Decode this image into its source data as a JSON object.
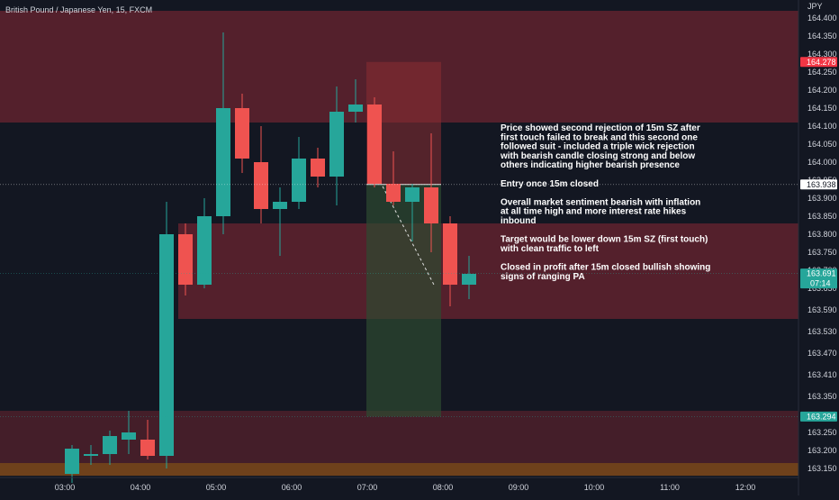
{
  "header": {
    "symbol_title": "British Pound / Japanese Yen, 15, FXCM"
  },
  "price_axis": {
    "currency": "JPY",
    "ticks": [
      "164.400",
      "164.350",
      "164.300",
      "164.250",
      "164.200",
      "164.150",
      "164.100",
      "164.050",
      "164.000",
      "163.950",
      "163.900",
      "163.850",
      "163.800",
      "163.750",
      "163.700",
      "163.650",
      "163.590",
      "163.530",
      "163.470",
      "163.410",
      "163.350",
      "163.290",
      "163.250",
      "163.200",
      "163.150"
    ],
    "labels": [
      {
        "text": "164.278",
        "color": "#f23645"
      },
      {
        "text": "163.938",
        "color": "#ffffff"
      },
      {
        "text": "163.691",
        "color": "#26a69a",
        "sub": "07:14"
      },
      {
        "text": "163.294",
        "color": "#26a69a"
      }
    ]
  },
  "time_axis": {
    "ticks": [
      "03:00",
      "04:00",
      "05:00",
      "06:00",
      "07:00",
      "08:00",
      "09:00",
      "10:00",
      "11:00",
      "12:00"
    ]
  },
  "annotation": {
    "lines": [
      "Price showed second rejection of 15m SZ after",
      "first touch failed to break and this second one",
      "followed suit - included a triple wick rejection",
      "with bearish candle closing strong and below",
      "others indicating higher bearish presence",
      "",
      "Entry once 15m closed",
      "",
      "Overall market sentiment bearish with inflation",
      "at all time high and more interest rate hikes",
      "inbound",
      "",
      "Target would be lower down 15m SZ (first touch)",
      "with clean traffic to left",
      "",
      "Closed in profit after 15m closed bullish showing",
      "signs of ranging PA"
    ]
  },
  "colors": {
    "background": "#131722",
    "bull": "#26a69a",
    "bear": "#ef5350",
    "zone": "#6e2430",
    "risk_box": "#8b2d33",
    "reward_box": "#2e4a30",
    "demand_zone": "#7a4a18"
  },
  "chart_data": {
    "type": "candlestick",
    "symbol": "British Pound / Japanese Yen",
    "timeframe": "15",
    "source": "FXCM",
    "y_unit": "JPY",
    "ylim": [
      163.13,
      164.42
    ],
    "candles": [
      {
        "o": 163.135,
        "h": 163.215,
        "l": 163.11,
        "c": 163.205
      },
      {
        "o": 163.185,
        "h": 163.215,
        "l": 163.16,
        "c": 163.19
      },
      {
        "o": 163.19,
        "h": 163.255,
        "l": 163.16,
        "c": 163.24
      },
      {
        "o": 163.23,
        "h": 163.31,
        "l": 163.19,
        "c": 163.25
      },
      {
        "o": 163.23,
        "h": 163.285,
        "l": 163.175,
        "c": 163.185
      },
      {
        "o": 163.185,
        "h": 163.89,
        "l": 163.15,
        "c": 163.8
      },
      {
        "o": 163.8,
        "h": 163.83,
        "l": 163.63,
        "c": 163.66
      },
      {
        "o": 163.66,
        "h": 163.9,
        "l": 163.65,
        "c": 163.85
      },
      {
        "o": 163.85,
        "h": 164.36,
        "l": 163.8,
        "c": 164.15
      },
      {
        "o": 164.15,
        "h": 164.19,
        "l": 163.97,
        "c": 164.01
      },
      {
        "o": 164.0,
        "h": 164.1,
        "l": 163.83,
        "c": 163.87
      },
      {
        "o": 163.87,
        "h": 163.93,
        "l": 163.74,
        "c": 163.89
      },
      {
        "o": 163.89,
        "h": 164.07,
        "l": 163.87,
        "c": 164.01
      },
      {
        "o": 164.01,
        "h": 164.04,
        "l": 163.93,
        "c": 163.96
      },
      {
        "o": 163.96,
        "h": 164.21,
        "l": 163.88,
        "c": 164.14
      },
      {
        "o": 164.14,
        "h": 164.23,
        "l": 164.11,
        "c": 164.16
      },
      {
        "o": 164.16,
        "h": 164.18,
        "l": 163.93,
        "c": 163.94
      },
      {
        "o": 163.94,
        "h": 164.03,
        "l": 163.88,
        "c": 163.89
      },
      {
        "o": 163.89,
        "h": 163.94,
        "l": 163.78,
        "c": 163.93
      },
      {
        "o": 163.93,
        "h": 164.08,
        "l": 163.75,
        "c": 163.83
      },
      {
        "o": 163.83,
        "h": 163.85,
        "l": 163.6,
        "c": 163.66
      },
      {
        "o": 163.66,
        "h": 163.74,
        "l": 163.62,
        "c": 163.69
      }
    ],
    "zones": [
      {
        "kind": "supply",
        "from": 164.11,
        "to": 164.42
      },
      {
        "kind": "supply",
        "from": 163.565,
        "to": 163.83
      },
      {
        "kind": "demand",
        "from": 163.13,
        "to": 163.31
      }
    ],
    "position": {
      "side": "short",
      "entry": 163.938,
      "stop": 164.278,
      "target": 163.294
    },
    "price_lines": [
      163.938,
      163.691,
      163.294
    ]
  }
}
